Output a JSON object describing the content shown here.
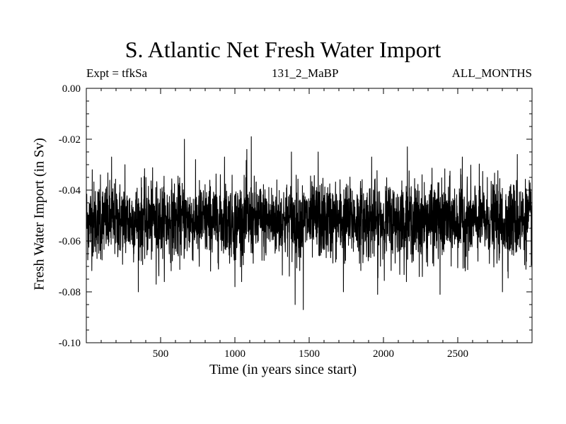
{
  "chart_data": {
    "type": "line",
    "title": "S. Atlantic Net Fresh Water Import",
    "subtitle_left": "Expt = tfkSa",
    "subtitle_center": "131_2_MaBP",
    "subtitle_right": "ALL_MONTHS",
    "xlabel": "Time (in years since start)",
    "ylabel": "Fresh Water Import (in Sv)",
    "xlim": [
      0,
      3000
    ],
    "ylim": [
      -0.1,
      0.0
    ],
    "x_ticks": [
      500,
      1000,
      1500,
      2000,
      2500
    ],
    "x_tick_labels": [
      "500",
      "1000",
      "1500",
      "2000",
      "2500"
    ],
    "y_ticks": [
      0.0,
      -0.02,
      -0.04,
      -0.06,
      -0.08,
      -0.1
    ],
    "y_tick_labels": [
      "0.00",
      "-0.02",
      "-0.04",
      "-0.06",
      "-0.08",
      "-0.10"
    ],
    "series": [
      {
        "name": "Net fresh water import",
        "color": "#000000",
        "n_points": 3000,
        "mean": -0.052,
        "std": 0.0075,
        "extremes": [
          {
            "x": 40,
            "y": -0.032
          },
          {
            "x": 95,
            "y": -0.034
          },
          {
            "x": 170,
            "y": -0.027
          },
          {
            "x": 260,
            "y": -0.03
          },
          {
            "x": 350,
            "y": -0.08
          },
          {
            "x": 470,
            "y": -0.077
          },
          {
            "x": 660,
            "y": -0.02
          },
          {
            "x": 760,
            "y": -0.07
          },
          {
            "x": 930,
            "y": -0.027
          },
          {
            "x": 1000,
            "y": -0.078
          },
          {
            "x": 1080,
            "y": -0.024
          },
          {
            "x": 1110,
            "y": -0.019
          },
          {
            "x": 1380,
            "y": -0.025
          },
          {
            "x": 1405,
            "y": -0.085
          },
          {
            "x": 1460,
            "y": -0.087
          },
          {
            "x": 1560,
            "y": -0.025
          },
          {
            "x": 1730,
            "y": -0.08
          },
          {
            "x": 1920,
            "y": -0.027
          },
          {
            "x": 1960,
            "y": -0.081
          },
          {
            "x": 2160,
            "y": -0.023
          },
          {
            "x": 2240,
            "y": -0.074
          },
          {
            "x": 2380,
            "y": -0.081
          },
          {
            "x": 2530,
            "y": -0.027
          },
          {
            "x": 2800,
            "y": -0.08
          },
          {
            "x": 2900,
            "y": -0.026
          }
        ]
      }
    ]
  }
}
